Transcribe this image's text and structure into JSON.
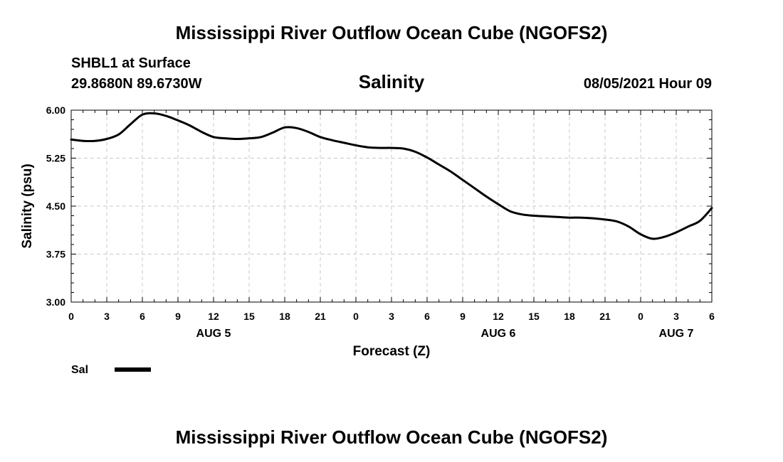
{
  "chart_data": {
    "type": "line",
    "title": "Mississippi River Outflow Ocean Cube (NGOFS2)",
    "footer_title": "Mississippi River Outflow Ocean Cube (NGOFS2)",
    "station": "SHBL1 at Surface",
    "coordinates": "29.8680N  89.6730W",
    "subtitle": "Salinity",
    "datetime": "08/05/2021 Hour 09",
    "xlabel": "Forecast (Z)",
    "ylabel": "Salinity (psu)",
    "ylim": [
      3.0,
      6.0
    ],
    "xlim": [
      0,
      54
    ],
    "y_ticks": [
      "3.00",
      "3.75",
      "4.50",
      "5.25",
      "6.00"
    ],
    "x_tick_labels": [
      "0",
      "3",
      "6",
      "9",
      "12",
      "15",
      "18",
      "21",
      "0",
      "3",
      "6",
      "9",
      "12",
      "15",
      "18",
      "21",
      "0",
      "3",
      "6"
    ],
    "date_labels": [
      {
        "label": "AUG 5",
        "hour": 12
      },
      {
        "label": "AUG 6",
        "hour": 36
      },
      {
        "label": "AUG 7",
        "hour": 51
      }
    ],
    "grid": true,
    "legend": {
      "label": "Sal",
      "placement": "bottom-left"
    },
    "series": [
      {
        "name": "Sal",
        "color": "#000000",
        "x": [
          0,
          1,
          2,
          3,
          4,
          5,
          6,
          7,
          8,
          9,
          10,
          11,
          12,
          13,
          14,
          15,
          16,
          17,
          18,
          19,
          20,
          21,
          22,
          23,
          24,
          25,
          26,
          27,
          28,
          29,
          30,
          31,
          32,
          33,
          34,
          35,
          36,
          37,
          38,
          39,
          40,
          41,
          42,
          43,
          44,
          45,
          46,
          47,
          48,
          49,
          50,
          51,
          52,
          53,
          54
        ],
        "y": [
          5.54,
          5.52,
          5.52,
          5.55,
          5.62,
          5.78,
          5.93,
          5.95,
          5.91,
          5.84,
          5.76,
          5.66,
          5.58,
          5.56,
          5.55,
          5.56,
          5.58,
          5.65,
          5.73,
          5.72,
          5.66,
          5.58,
          5.53,
          5.49,
          5.45,
          5.42,
          5.41,
          5.41,
          5.4,
          5.35,
          5.26,
          5.15,
          5.04,
          4.91,
          4.78,
          4.65,
          4.53,
          4.42,
          4.37,
          4.35,
          4.34,
          4.33,
          4.32,
          4.32,
          4.31,
          4.29,
          4.26,
          4.18,
          4.06,
          3.99,
          4.02,
          4.09,
          4.18,
          4.27,
          4.47
        ]
      }
    ]
  }
}
